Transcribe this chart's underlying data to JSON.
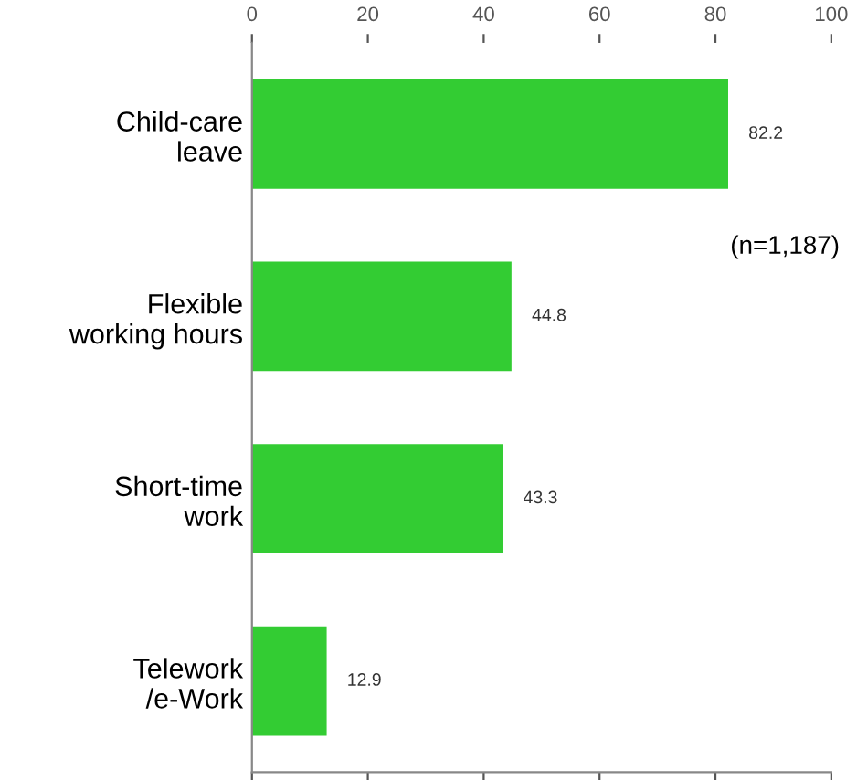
{
  "chart_data": {
    "type": "bar",
    "orientation": "horizontal",
    "categories": [
      "Child-care\nleave",
      "Flexible\nworking hours",
      "Short-time\nwork",
      "Telework\n/e-Work"
    ],
    "values": [
      82.2,
      44.8,
      43.3,
      12.9
    ],
    "color": "#33cc33",
    "data_labels": true,
    "xlim": [
      0,
      100
    ],
    "xticks": [
      0,
      20,
      40,
      60,
      80,
      100
    ],
    "grid": false,
    "annotations": [
      "(n=1,187)"
    ]
  }
}
